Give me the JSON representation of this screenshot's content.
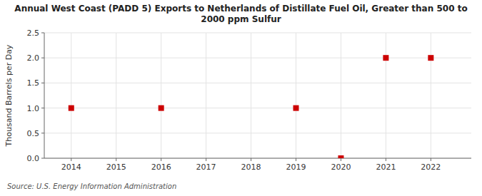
{
  "chart_data": {
    "type": "scatter",
    "title": "Annual West Coast (PADD 5) Exports to Netherlands of Distillate Fuel Oil, Greater than 500 to\n2000 ppm Sulfur",
    "ylabel": "Thousand Barrels per Day",
    "source": "Source: U.S. Energy Information Administration",
    "x": [
      2014,
      2016,
      2019,
      2020,
      2021,
      2022
    ],
    "values": [
      1.0,
      1.0,
      1.0,
      0.0,
      2.0,
      2.0
    ],
    "xlim": [
      2013.4,
      2022.9
    ],
    "ylim": [
      0.0,
      2.5
    ],
    "xticks": [
      2014,
      2015,
      2016,
      2017,
      2018,
      2019,
      2020,
      2021,
      2022
    ],
    "yticks": [
      {
        "value": 0.0,
        "label": "0.0"
      },
      0.5,
      {
        "value": 1.0,
        "label": "1.0"
      },
      1.5,
      {
        "value": 2.0,
        "label": "2.0"
      },
      2.5
    ],
    "color": "#cc0000",
    "marker": "square",
    "grid": true
  }
}
